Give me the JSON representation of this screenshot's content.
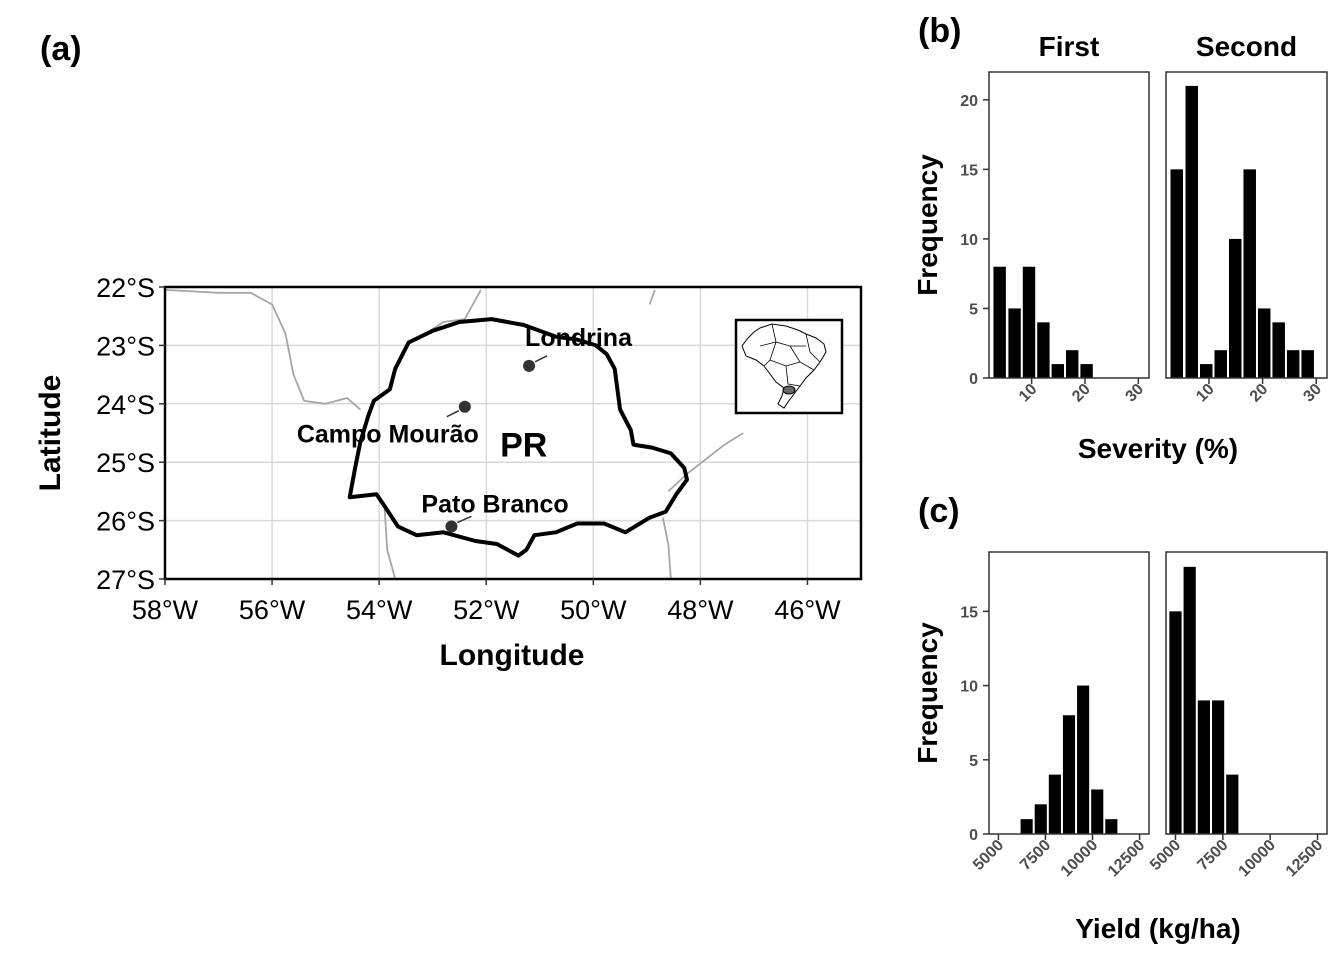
{
  "colors": {
    "bar": "#000000",
    "grid": "#d9d9d9",
    "border": "#333333",
    "neighbor_border": "#a6a6a6",
    "point": "#333333"
  },
  "chart_data": [
    {
      "panel": "(a)",
      "type": "map",
      "xlabel": "Longitude",
      "ylabel": "Latitude",
      "x_range": [
        -58,
        -45
      ],
      "y_range": [
        -27,
        -22
      ],
      "x_ticks": [
        -58,
        -56,
        -54,
        -52,
        -50,
        -48,
        -46
      ],
      "x_tick_labels": [
        "58°W",
        "56°W",
        "54°W",
        "52°W",
        "50°W",
        "48°W",
        "46°W"
      ],
      "y_ticks": [
        -22,
        -23,
        -24,
        -25,
        -26,
        -27
      ],
      "y_tick_labels": [
        "22°S",
        "23°S",
        "24°S",
        "25°S",
        "26°S",
        "27°S"
      ],
      "state_label": {
        "text": "PR",
        "lon": -51.3,
        "lat": -24.7
      },
      "state_outline": [
        [
          -51.9,
          -22.55
        ],
        [
          -51.3,
          -22.65
        ],
        [
          -50.7,
          -22.85
        ],
        [
          -50.3,
          -22.9
        ],
        [
          -49.95,
          -23.0
        ],
        [
          -49.75,
          -23.15
        ],
        [
          -49.6,
          -23.4
        ],
        [
          -49.55,
          -23.75
        ],
        [
          -49.5,
          -24.1
        ],
        [
          -49.3,
          -24.45
        ],
        [
          -49.25,
          -24.7
        ],
        [
          -48.9,
          -24.75
        ],
        [
          -48.55,
          -24.85
        ],
        [
          -48.3,
          -25.1
        ],
        [
          -48.25,
          -25.3
        ],
        [
          -48.45,
          -25.55
        ],
        [
          -48.65,
          -25.85
        ],
        [
          -48.95,
          -25.95
        ],
        [
          -49.4,
          -26.2
        ],
        [
          -49.8,
          -26.05
        ],
        [
          -50.3,
          -26.05
        ],
        [
          -50.7,
          -26.2
        ],
        [
          -51.1,
          -26.25
        ],
        [
          -51.25,
          -26.5
        ],
        [
          -51.4,
          -26.6
        ],
        [
          -51.8,
          -26.4
        ],
        [
          -52.2,
          -26.35
        ],
        [
          -52.8,
          -26.2
        ],
        [
          -53.3,
          -26.25
        ],
        [
          -53.65,
          -26.1
        ],
        [
          -53.9,
          -25.75
        ],
        [
          -54.05,
          -25.55
        ],
        [
          -54.55,
          -25.6
        ],
        [
          -54.45,
          -25.1
        ],
        [
          -54.35,
          -24.65
        ],
        [
          -54.2,
          -24.2
        ],
        [
          -54.1,
          -23.95
        ],
        [
          -53.8,
          -23.75
        ],
        [
          -53.7,
          -23.4
        ],
        [
          -53.45,
          -22.95
        ],
        [
          -53.0,
          -22.75
        ],
        [
          -52.5,
          -22.6
        ],
        [
          -51.9,
          -22.55
        ]
      ],
      "neighbor_lines": [
        [
          [
            -58,
            -22.05
          ],
          [
            -57,
            -22.1
          ],
          [
            -56.4,
            -22.1
          ],
          [
            -56.0,
            -22.3
          ],
          [
            -55.75,
            -22.8
          ],
          [
            -55.6,
            -23.5
          ],
          [
            -55.4,
            -23.95
          ],
          [
            -55.0,
            -24.0
          ],
          [
            -54.6,
            -23.9
          ],
          [
            -54.35,
            -24.1
          ]
        ],
        [
          [
            -53.3,
            -22.9
          ],
          [
            -52.8,
            -22.6
          ],
          [
            -52.4,
            -22.55
          ],
          [
            -52.1,
            -22.05
          ]
        ],
        [
          [
            -48.85,
            -22.05
          ],
          [
            -48.95,
            -22.3
          ]
        ],
        [
          [
            -48.6,
            -25.5
          ],
          [
            -48.25,
            -25.2
          ],
          [
            -47.9,
            -24.95
          ],
          [
            -47.55,
            -24.7
          ],
          [
            -47.2,
            -24.5
          ]
        ],
        [
          [
            -53.9,
            -25.75
          ],
          [
            -53.85,
            -26.5
          ],
          [
            -53.7,
            -27.0
          ]
        ],
        [
          [
            -48.7,
            -25.95
          ],
          [
            -48.6,
            -26.4
          ],
          [
            -48.55,
            -27.0
          ]
        ]
      ],
      "cities": [
        {
          "name": "Londrina",
          "lon": -51.2,
          "lat": -23.35
        },
        {
          "name": "Campo Mourão",
          "lon": -52.4,
          "lat": -24.05
        },
        {
          "name": "Pato Branco",
          "lon": -52.65,
          "lat": -26.1
        }
      ],
      "inset": "brazil-locator"
    },
    {
      "panel": "(b)",
      "type": "bar",
      "xlabel": "Severity (%)",
      "ylabel": "Frequency",
      "xlim": [
        2,
        32
      ],
      "ylim": [
        0,
        22
      ],
      "x_ticks": [
        10,
        20,
        30
      ],
      "y_ticks": [
        0,
        5,
        10,
        15,
        20
      ],
      "bin_width": 2.7,
      "facets": [
        {
          "name": "First",
          "x": [
            4,
            6.8,
            9.5,
            12.2,
            14.9,
            17.6,
            20.3
          ],
          "values": [
            8,
            5,
            8,
            4,
            1,
            2,
            1
          ]
        },
        {
          "name": "Second",
          "x": [
            4,
            6.8,
            9.5,
            12.2,
            14.9,
            17.6,
            20.3,
            23,
            25.7,
            28.4
          ],
          "values": [
            15,
            21,
            1,
            2,
            10,
            15,
            5,
            4,
            2,
            2
          ]
        }
      ]
    },
    {
      "panel": "(c)",
      "type": "bar",
      "xlabel": "Yield (kg/ha)",
      "ylabel": "Frequency",
      "xlim": [
        4500,
        13000
      ],
      "ylim": [
        0,
        19
      ],
      "x_ticks": [
        5000,
        7500,
        10000,
        12500
      ],
      "y_ticks": [
        0,
        5,
        10,
        15
      ],
      "bin_width": 750,
      "facets": [
        {
          "name": "",
          "x": [
            6500,
            7250,
            8000,
            8750,
            9500,
            10250,
            11000,
            11750
          ],
          "values": [
            1,
            2,
            4,
            8,
            10,
            3,
            1,
            0
          ]
        },
        {
          "name": "",
          "x": [
            5000,
            5750,
            6500,
            7250,
            8000,
            8750
          ],
          "values": [
            15,
            18,
            9,
            9,
            4,
            0
          ]
        }
      ]
    }
  ]
}
